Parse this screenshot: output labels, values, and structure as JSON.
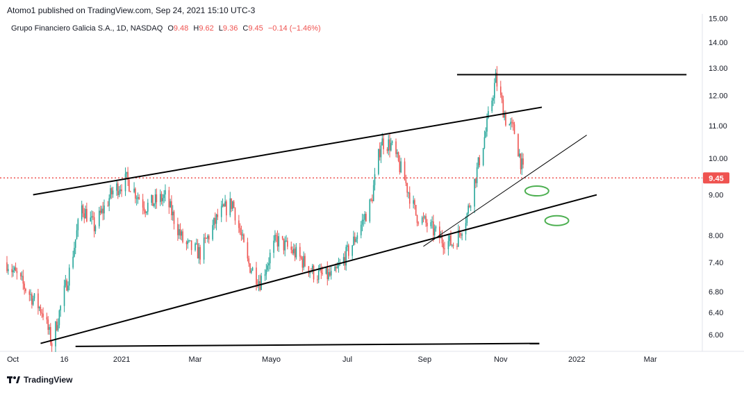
{
  "header": {
    "published": "Atomo1 published on TradingView.com, Sep 24, 2021 15:10 UTC-3"
  },
  "legend": {
    "symbol": "Grupo Financiero Galicia S.A., 1D, NASDAQ",
    "o_label": "O",
    "o_value": "9.48",
    "h_label": "H",
    "h_value": "9.62",
    "l_label": "L",
    "l_value": "9.36",
    "c_label": "C",
    "c_value": "9.45",
    "change": "−0.14 (−1.46%)"
  },
  "footer": {
    "brand": "TradingView"
  },
  "colors": {
    "up": "#26a69a",
    "down": "#ef5350",
    "price_line": "#ef5350",
    "drawing": "#000000",
    "ellipse": "#4caf50"
  },
  "chart_data": {
    "type": "candlestick",
    "scale": "log",
    "ylim": [
      5.75,
      15.0
    ],
    "y_ticks": [
      "15.00",
      "14.00",
      "13.00",
      "12.00",
      "11.00",
      "10.00",
      "9.00",
      "8.00",
      "7.40",
      "6.80",
      "6.40",
      "6.00"
    ],
    "x_ticks": [
      "Oct",
      "16",
      "2021",
      "Mar",
      "Mayo",
      "Jul",
      "Sep",
      "Nov",
      "2022",
      "Mar"
    ],
    "last_price": 9.45,
    "last_price_label": "9.45",
    "close_path": [
      [
        "2020-10-01",
        7.4
      ],
      [
        "2020-10-12",
        7.0
      ],
      [
        "2020-10-30",
        6.4
      ],
      [
        "2020-11-06",
        5.85
      ],
      [
        "2020-11-20",
        7.2
      ],
      [
        "2020-11-30",
        8.7
      ],
      [
        "2020-12-10",
        8.2
      ],
      [
        "2020-12-25",
        9.1
      ],
      [
        "2021-01-05",
        9.4
      ],
      [
        "2021-01-20",
        8.7
      ],
      [
        "2021-02-05",
        8.95
      ],
      [
        "2021-02-20",
        7.8
      ],
      [
        "2021-03-05",
        7.6
      ],
      [
        "2021-03-20",
        8.5
      ],
      [
        "2021-03-31",
        8.8
      ],
      [
        "2021-04-12",
        7.4
      ],
      [
        "2021-04-22",
        7.0
      ],
      [
        "2021-05-05",
        7.9
      ],
      [
        "2021-05-20",
        7.6
      ],
      [
        "2021-06-05",
        7.15
      ],
      [
        "2021-06-20",
        7.1
      ],
      [
        "2021-07-05",
        7.8
      ],
      [
        "2021-07-20",
        8.8
      ],
      [
        "2021-07-28",
        10.5
      ],
      [
        "2021-08-05",
        10.4
      ],
      [
        "2021-08-15",
        9.5
      ],
      [
        "2021-08-25",
        8.5
      ],
      [
        "2021-09-05",
        8.2
      ],
      [
        "2021-09-15",
        7.9
      ],
      [
        "2021-09-25",
        7.8
      ],
      [
        "2021-10-05",
        8.5
      ],
      [
        "2021-10-20",
        10.8
      ],
      [
        "2021-10-28",
        12.6
      ],
      [
        "2021-11-05",
        11.2
      ],
      [
        "2021-11-12",
        10.8
      ],
      [
        "2021-11-20",
        9.45
      ]
    ],
    "drawings": [
      {
        "name": "resistance-horizontal-line",
        "from": [
          "2021-09-27",
          12.75
        ],
        "to": [
          "2022-03-30",
          12.75
        ],
        "width": 2
      },
      {
        "name": "channel-upper-line",
        "from": [
          "2020-10-22",
          9.0
        ],
        "to": [
          "2021-12-04",
          11.6
        ],
        "width": 2
      },
      {
        "name": "channel-lower-line",
        "from": [
          "2020-10-28",
          5.85
        ],
        "to": [
          "2022-01-17",
          9.0
        ],
        "width": 2
      },
      {
        "name": "support-trendline-thin",
        "from": [
          "2021-08-31",
          7.75
        ],
        "to": [
          "2022-01-09",
          10.7
        ],
        "width": 1
      },
      {
        "name": "bottom-horizontal-line",
        "from": [
          "2020-11-25",
          5.8
        ],
        "to": [
          "2021-12-02",
          5.85
        ],
        "width": 2
      }
    ],
    "ellipses": [
      {
        "name": "ellipse-marker-upper",
        "center": [
          "2021-11-30",
          9.1
        ]
      },
      {
        "name": "ellipse-marker-lower",
        "center": [
          "2021-12-16",
          8.35
        ]
      }
    ]
  }
}
